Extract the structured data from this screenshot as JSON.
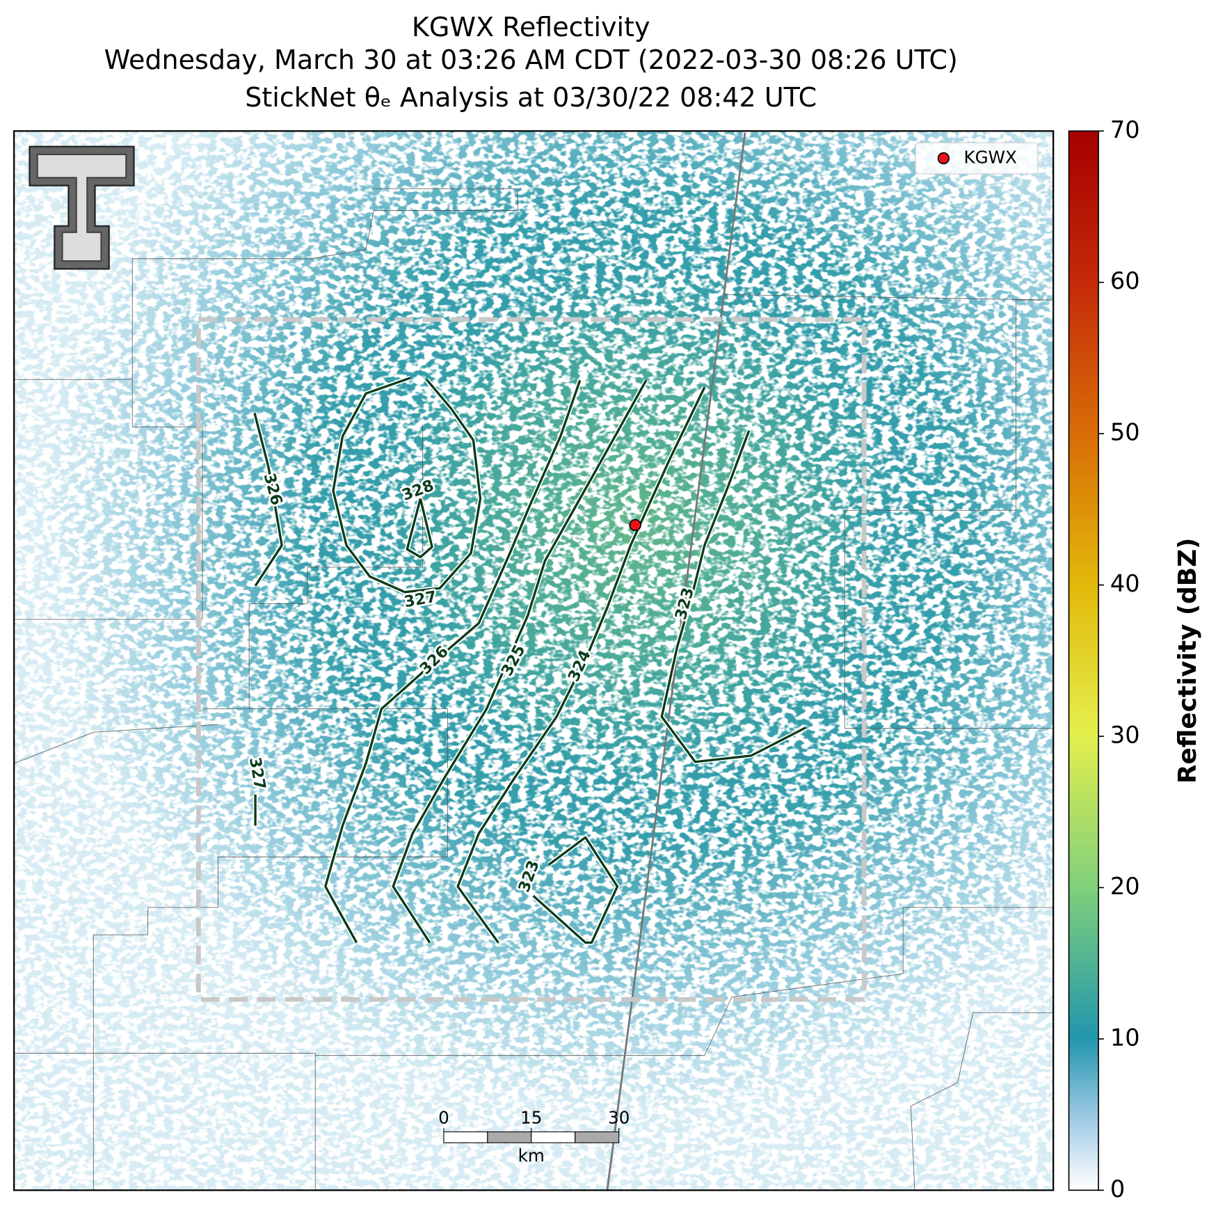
{
  "title_lines": [
    "KGWX Reflectivity",
    "Wednesday, March 30 at 03:26 AM CDT (2022-03-30 08:26 UTC)",
    "StickNet θₑ Analysis at 03/30/22 08:42 UTC"
  ],
  "legend": {
    "label": "KGWX",
    "color": "#e8121a"
  },
  "colorbar": {
    "label": "Reflectivity (dBZ)",
    "lim": [
      0,
      70
    ],
    "ticks": [
      0,
      10,
      20,
      30,
      40,
      50,
      60,
      70
    ]
  },
  "contours": [
    {
      "level": 326
    },
    {
      "level": 328
    },
    {
      "level": 327
    },
    {
      "level": 326
    },
    {
      "level": 325
    },
    {
      "level": 324
    },
    {
      "level": 323
    },
    {
      "level": 323
    },
    {
      "level": 327
    }
  ],
  "scale_bar": {
    "ticks": [
      0,
      15,
      30
    ],
    "unit": "km"
  }
}
